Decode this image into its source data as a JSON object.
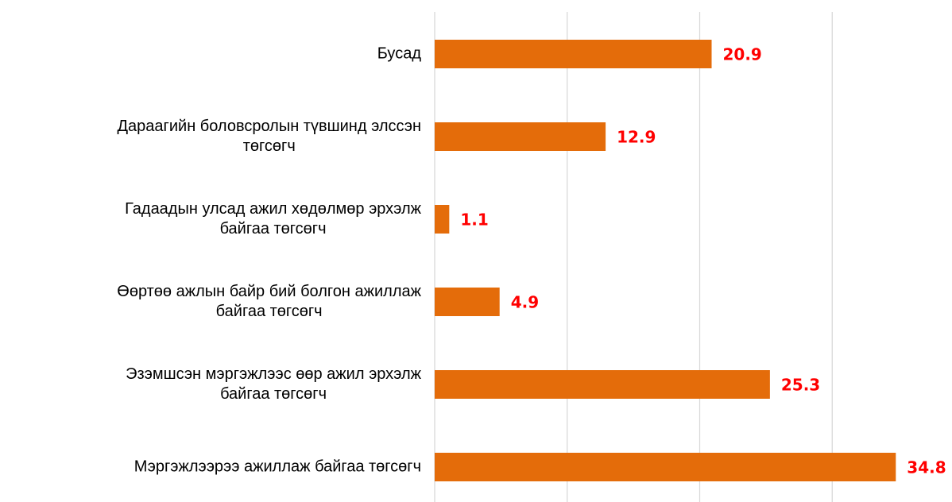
{
  "chart_data": {
    "type": "barh",
    "categories": [
      "Бусад",
      "Дараагийн боловсролын түвшинд элссэн\nтөгсөгч",
      "Гадаадын улсад ажил хөдөлмөр эрхэлж\nбайгаа төгсөгч",
      "Өөртөө ажлын байр бий болгон ажиллаж\nбайгаа төгсөгч",
      "Эзэмшсэн мэргэжлээс өөр ажил эрхэлж\nбайгаа төгсөгч",
      "Мэргэжлээрээ ажиллаж байгаа төгсөгч"
    ],
    "values": [
      20.9,
      12.9,
      1.1,
      4.9,
      25.3,
      34.8
    ],
    "color": "#e46c0a",
    "label_color": "#ff0000",
    "xlim": [
      0,
      40
    ],
    "xticks": [
      0,
      10,
      20,
      30
    ],
    "grid": true
  }
}
